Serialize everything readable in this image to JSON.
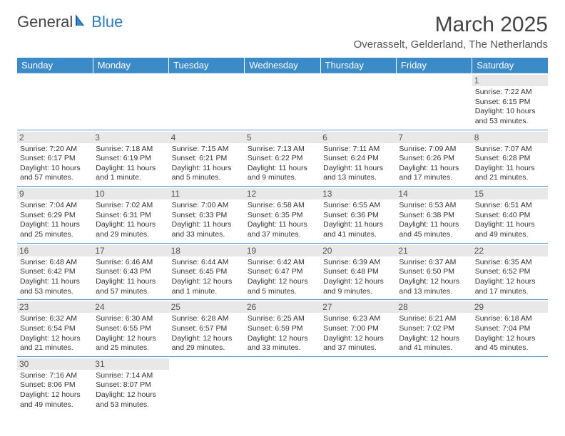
{
  "logo": {
    "text1": "General",
    "text2": "Blue"
  },
  "title": "March 2025",
  "location": "Overasselt, Gelderland, The Netherlands",
  "colors": {
    "header_bg": "#3b8bc9",
    "header_fg": "#ffffff",
    "row_border": "#5a9bd4",
    "daynum_bg": "#e8e8e8",
    "logo_blue": "#2a7bbf"
  },
  "weekdays": [
    "Sunday",
    "Monday",
    "Tuesday",
    "Wednesday",
    "Thursday",
    "Friday",
    "Saturday"
  ],
  "weeks": [
    [
      null,
      null,
      null,
      null,
      null,
      null,
      {
        "n": "1",
        "sr": "Sunrise: 7:22 AM",
        "ss": "Sunset: 6:15 PM",
        "dl": "Daylight: 10 hours and 53 minutes."
      }
    ],
    [
      {
        "n": "2",
        "sr": "Sunrise: 7:20 AM",
        "ss": "Sunset: 6:17 PM",
        "dl": "Daylight: 10 hours and 57 minutes."
      },
      {
        "n": "3",
        "sr": "Sunrise: 7:18 AM",
        "ss": "Sunset: 6:19 PM",
        "dl": "Daylight: 11 hours and 1 minute."
      },
      {
        "n": "4",
        "sr": "Sunrise: 7:15 AM",
        "ss": "Sunset: 6:21 PM",
        "dl": "Daylight: 11 hours and 5 minutes."
      },
      {
        "n": "5",
        "sr": "Sunrise: 7:13 AM",
        "ss": "Sunset: 6:22 PM",
        "dl": "Daylight: 11 hours and 9 minutes."
      },
      {
        "n": "6",
        "sr": "Sunrise: 7:11 AM",
        "ss": "Sunset: 6:24 PM",
        "dl": "Daylight: 11 hours and 13 minutes."
      },
      {
        "n": "7",
        "sr": "Sunrise: 7:09 AM",
        "ss": "Sunset: 6:26 PM",
        "dl": "Daylight: 11 hours and 17 minutes."
      },
      {
        "n": "8",
        "sr": "Sunrise: 7:07 AM",
        "ss": "Sunset: 6:28 PM",
        "dl": "Daylight: 11 hours and 21 minutes."
      }
    ],
    [
      {
        "n": "9",
        "sr": "Sunrise: 7:04 AM",
        "ss": "Sunset: 6:29 PM",
        "dl": "Daylight: 11 hours and 25 minutes."
      },
      {
        "n": "10",
        "sr": "Sunrise: 7:02 AM",
        "ss": "Sunset: 6:31 PM",
        "dl": "Daylight: 11 hours and 29 minutes."
      },
      {
        "n": "11",
        "sr": "Sunrise: 7:00 AM",
        "ss": "Sunset: 6:33 PM",
        "dl": "Daylight: 11 hours and 33 minutes."
      },
      {
        "n": "12",
        "sr": "Sunrise: 6:58 AM",
        "ss": "Sunset: 6:35 PM",
        "dl": "Daylight: 11 hours and 37 minutes."
      },
      {
        "n": "13",
        "sr": "Sunrise: 6:55 AM",
        "ss": "Sunset: 6:36 PM",
        "dl": "Daylight: 11 hours and 41 minutes."
      },
      {
        "n": "14",
        "sr": "Sunrise: 6:53 AM",
        "ss": "Sunset: 6:38 PM",
        "dl": "Daylight: 11 hours and 45 minutes."
      },
      {
        "n": "15",
        "sr": "Sunrise: 6:51 AM",
        "ss": "Sunset: 6:40 PM",
        "dl": "Daylight: 11 hours and 49 minutes."
      }
    ],
    [
      {
        "n": "16",
        "sr": "Sunrise: 6:48 AM",
        "ss": "Sunset: 6:42 PM",
        "dl": "Daylight: 11 hours and 53 minutes."
      },
      {
        "n": "17",
        "sr": "Sunrise: 6:46 AM",
        "ss": "Sunset: 6:43 PM",
        "dl": "Daylight: 11 hours and 57 minutes."
      },
      {
        "n": "18",
        "sr": "Sunrise: 6:44 AM",
        "ss": "Sunset: 6:45 PM",
        "dl": "Daylight: 12 hours and 1 minute."
      },
      {
        "n": "19",
        "sr": "Sunrise: 6:42 AM",
        "ss": "Sunset: 6:47 PM",
        "dl": "Daylight: 12 hours and 5 minutes."
      },
      {
        "n": "20",
        "sr": "Sunrise: 6:39 AM",
        "ss": "Sunset: 6:48 PM",
        "dl": "Daylight: 12 hours and 9 minutes."
      },
      {
        "n": "21",
        "sr": "Sunrise: 6:37 AM",
        "ss": "Sunset: 6:50 PM",
        "dl": "Daylight: 12 hours and 13 minutes."
      },
      {
        "n": "22",
        "sr": "Sunrise: 6:35 AM",
        "ss": "Sunset: 6:52 PM",
        "dl": "Daylight: 12 hours and 17 minutes."
      }
    ],
    [
      {
        "n": "23",
        "sr": "Sunrise: 6:32 AM",
        "ss": "Sunset: 6:54 PM",
        "dl": "Daylight: 12 hours and 21 minutes."
      },
      {
        "n": "24",
        "sr": "Sunrise: 6:30 AM",
        "ss": "Sunset: 6:55 PM",
        "dl": "Daylight: 12 hours and 25 minutes."
      },
      {
        "n": "25",
        "sr": "Sunrise: 6:28 AM",
        "ss": "Sunset: 6:57 PM",
        "dl": "Daylight: 12 hours and 29 minutes."
      },
      {
        "n": "26",
        "sr": "Sunrise: 6:25 AM",
        "ss": "Sunset: 6:59 PM",
        "dl": "Daylight: 12 hours and 33 minutes."
      },
      {
        "n": "27",
        "sr": "Sunrise: 6:23 AM",
        "ss": "Sunset: 7:00 PM",
        "dl": "Daylight: 12 hours and 37 minutes."
      },
      {
        "n": "28",
        "sr": "Sunrise: 6:21 AM",
        "ss": "Sunset: 7:02 PM",
        "dl": "Daylight: 12 hours and 41 minutes."
      },
      {
        "n": "29",
        "sr": "Sunrise: 6:18 AM",
        "ss": "Sunset: 7:04 PM",
        "dl": "Daylight: 12 hours and 45 minutes."
      }
    ],
    [
      {
        "n": "30",
        "sr": "Sunrise: 7:16 AM",
        "ss": "Sunset: 8:06 PM",
        "dl": "Daylight: 12 hours and 49 minutes."
      },
      {
        "n": "31",
        "sr": "Sunrise: 7:14 AM",
        "ss": "Sunset: 8:07 PM",
        "dl": "Daylight: 12 hours and 53 minutes."
      },
      null,
      null,
      null,
      null,
      null
    ]
  ]
}
